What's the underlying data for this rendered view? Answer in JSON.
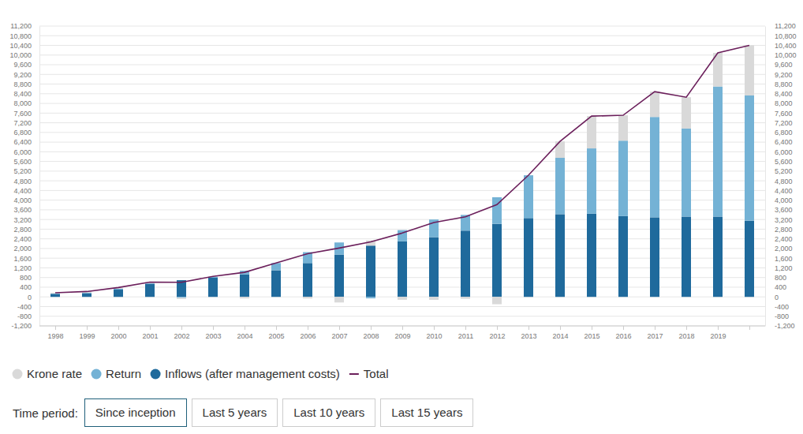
{
  "chart_data": {
    "type": "bar",
    "stacked": true,
    "grid": true,
    "legend": "bottom-left",
    "categories": [
      "1998",
      "1999",
      "2000",
      "2001",
      "2002",
      "2003",
      "2004",
      "2005",
      "2006",
      "2007",
      "2008",
      "2009",
      "2010",
      "2011",
      "2012",
      "2013",
      "2014",
      "2015",
      "2016",
      "2017",
      "2018",
      "2019",
      null
    ],
    "ylim": [
      -1200,
      11200
    ],
    "yticks": [
      {
        "value": -1200,
        "label": "-1,200"
      },
      -800,
      -400,
      0,
      400,
      800,
      {
        "value": 1200,
        "label": "1,200"
      },
      {
        "value": 1600,
        "label": "1,600"
      },
      {
        "value": 2000,
        "label": "2,000"
      },
      {
        "value": 2400,
        "label": "2,400"
      },
      {
        "value": 2800,
        "label": "2,800"
      },
      {
        "value": 3200,
        "label": "3,200"
      },
      {
        "value": 3600,
        "label": "3,600"
      },
      {
        "value": 4000,
        "label": "4,000"
      },
      {
        "value": 4400,
        "label": "4,400"
      },
      {
        "value": 4800,
        "label": "4,800"
      },
      {
        "value": 5200,
        "label": "5,200"
      },
      {
        "value": 5600,
        "label": "5,600"
      },
      {
        "value": 6000,
        "label": "6,000"
      },
      {
        "value": 6400,
        "label": "6,400"
      },
      {
        "value": 6800,
        "label": "6,800"
      },
      {
        "value": 7200,
        "label": "7,200"
      },
      {
        "value": 7600,
        "label": "7,600"
      },
      {
        "value": 8000,
        "label": "8,000"
      },
      {
        "value": 8400,
        "label": "8,400"
      },
      {
        "value": 8800,
        "label": "8,800"
      },
      {
        "value": 9200,
        "label": "9,200"
      },
      {
        "value": 9600,
        "label": "9,600"
      },
      {
        "value": 10000,
        "label": "10,000"
      },
      {
        "value": 10400,
        "label": "10,400"
      },
      {
        "value": 10800,
        "label": "10,800"
      },
      {
        "value": 11200,
        "label": "11,200"
      }
    ],
    "series": [
      {
        "name": "Krone rate",
        "color": "#d9d9d9",
        "values": [
          30,
          42,
          46,
          43,
          -46,
          15,
          -64,
          -1,
          -66,
          -231,
          215,
          -120,
          -123,
          -78,
          -304,
          2,
          681,
          1335,
          1050,
          1048,
          1296,
          1388,
          2070
        ]
      },
      {
        "name": "Return",
        "color": "#74b2d5",
        "values": [
          15,
          30,
          40,
          30,
          -40,
          40,
          150,
          300,
          450,
          500,
          -60,
          460,
          730,
          650,
          1100,
          1770,
          2330,
          2700,
          3120,
          4150,
          3640,
          5380,
          5180
        ]
      },
      {
        "name": "Inflows (after management costs)",
        "color": "#1f6a9c",
        "values": [
          125,
          150,
          300,
          540,
          690,
          790,
          930,
          1100,
          1400,
          1750,
          2120,
          2300,
          2470,
          2740,
          3020,
          3260,
          3420,
          3440,
          3340,
          3290,
          3320,
          3320,
          3150
        ]
      },
      {
        "name": "Total",
        "type": "line",
        "color": "#6b1f5b",
        "values": [
          170,
          222,
          386,
          613,
          604,
          845,
          1016,
          1399,
          1784,
          2019,
          2275,
          2640,
          3077,
          3312,
          3816,
          5032,
          6431,
          7475,
          7510,
          8488,
          8256,
          10088,
          10400
        ]
      }
    ]
  },
  "controls": {
    "label": "Time period:",
    "options": [
      "Since inception",
      "Last 5 years",
      "Last 10 years",
      "Last 15 years"
    ]
  }
}
